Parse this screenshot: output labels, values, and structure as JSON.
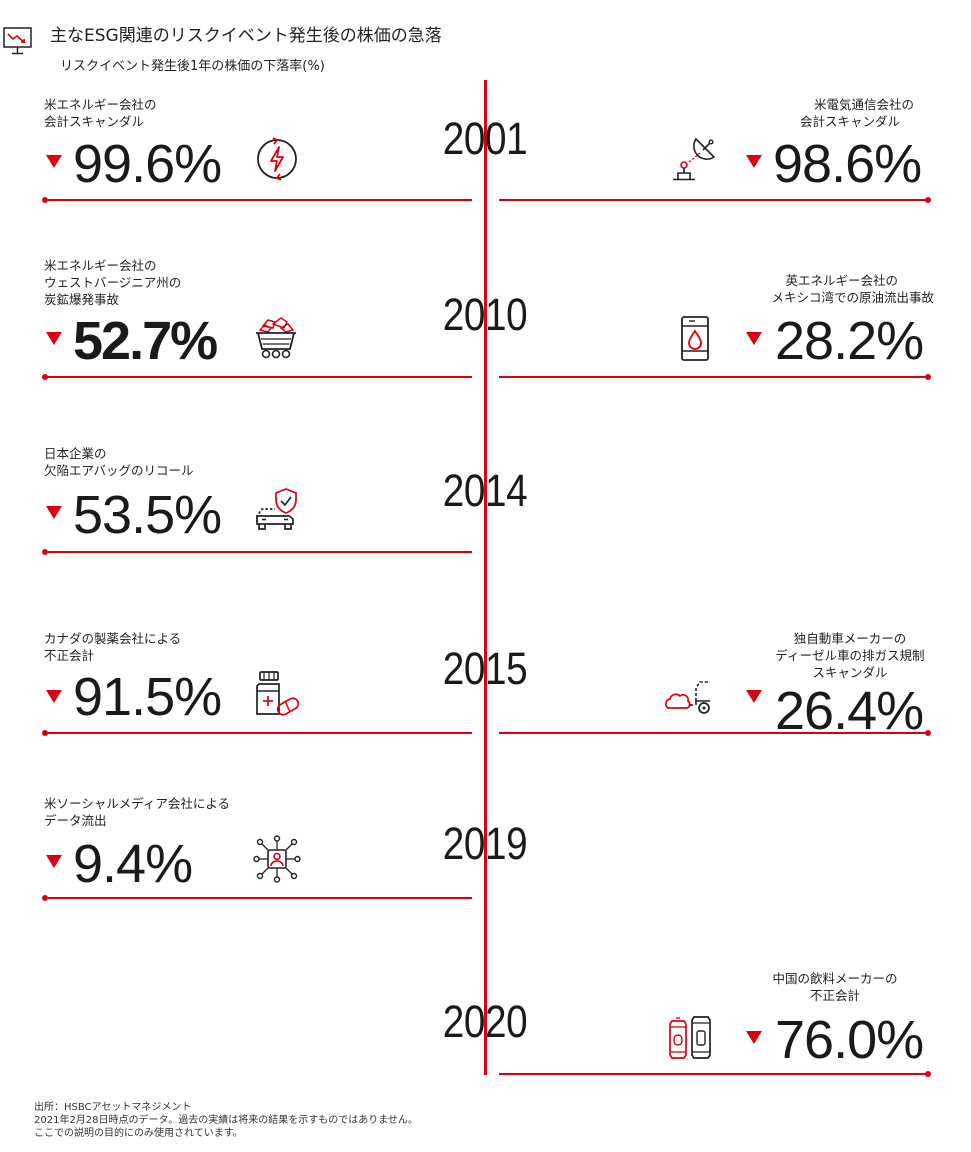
{
  "header": {
    "title": "主なESG関連のリスクイベント発生後の株価の急落",
    "subtitle": "リスクイベント発生後1年の株価の下落率(%)"
  },
  "timeline": {
    "years": [
      "2001",
      "2010",
      "2014",
      "2015",
      "2019",
      "2020"
    ],
    "events": [
      {
        "side": "left",
        "year": "2001",
        "label_lines": [
          "米エネルギー会社の",
          "会計スキャンダル"
        ],
        "value": "99.6%",
        "icon": "lightning-cycle-icon"
      },
      {
        "side": "right",
        "year": "2001",
        "label_lines": [
          "米電気通信会社の",
          "会計スキャンダル"
        ],
        "value": "98.6%",
        "icon": "satellite-dish-icon"
      },
      {
        "side": "left",
        "year": "2010",
        "label_lines": [
          "米エネルギー会社の",
          "ウェストバージニア州の",
          "炭鉱爆発事故"
        ],
        "value": "52.7%",
        "icon": "mine-cart-icon"
      },
      {
        "side": "right",
        "year": "2010",
        "label_lines": [
          "英エネルギー会社の",
          "メキシコ湾での原油流出事故"
        ],
        "value": "28.2%",
        "icon": "oil-barrel-icon"
      },
      {
        "side": "left",
        "year": "2014",
        "label_lines": [
          "日本企業の",
          "欠陥エアバッグのリコール"
        ],
        "value": "53.5%",
        "icon": "car-shield-icon"
      },
      {
        "side": "left",
        "year": "2015",
        "label_lines": [
          "カナダの製薬会社による",
          "不正会計"
        ],
        "value": "91.5%",
        "icon": "medicine-bottle-icon"
      },
      {
        "side": "right",
        "year": "2015",
        "label_lines": [
          "独自動車メーカーの",
          "ディーゼル車の排ガス規制",
          "スキャンダル"
        ],
        "value": "26.4%",
        "icon": "exhaust-cloud-icon"
      },
      {
        "side": "left",
        "year": "2019",
        "label_lines": [
          "米ソーシャルメディア会社による",
          "データ流出"
        ],
        "value": "9.4%",
        "icon": "data-network-icon"
      },
      {
        "side": "right",
        "year": "2020",
        "label_lines": [
          "中国の飲料メーカーの",
          "不正会計"
        ],
        "value": "76.0%",
        "icon": "beverage-cans-icon"
      }
    ]
  },
  "footer": {
    "lines": [
      "出所：HSBCアセットマネジメント",
      "2021年2月28日時点のデータ。過去の実績は将来の結果を示すものではありません。",
      "ここでの説明の目的にのみ使用されています。"
    ]
  },
  "colors": {
    "accent": "#db0011",
    "text": "#1a1a1a"
  },
  "icons": {
    "header": "monitor-chart-down-icon",
    "decline": "down-triangle-icon"
  }
}
